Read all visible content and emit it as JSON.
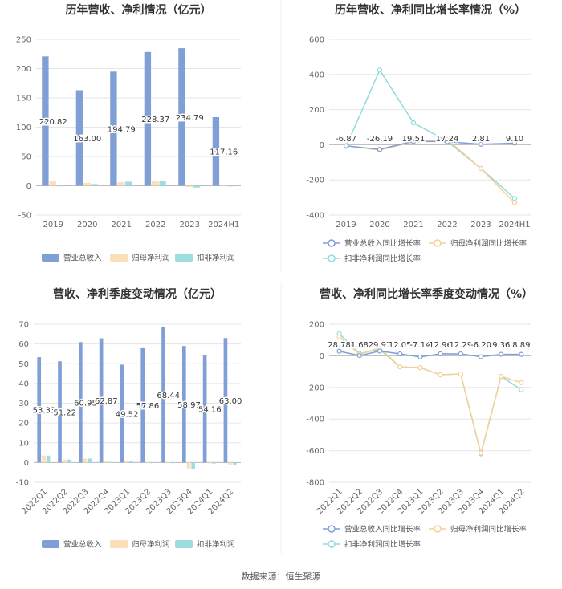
{
  "source_note": "数据来源：恒生聚源",
  "colors": {
    "revenue": "#7f9fd6",
    "net": "#fbdfb6",
    "deducted": "#9edee0",
    "grid": "#e6e6e6",
    "axis": "#bbbbbb"
  },
  "chart_data": [
    {
      "id": "annual-bar",
      "type": "bar",
      "title": "历年营收、净利情况（亿元）",
      "categories": [
        "2019",
        "2020",
        "2021",
        "2022",
        "2023",
        "2024H1"
      ],
      "series": [
        {
          "name": "营业总收入",
          "values": [
            220.82,
            163.0,
            194.79,
            228.37,
            234.79,
            117.16
          ]
        },
        {
          "name": "归母净利润",
          "values": [
            8,
            5,
            6,
            8,
            -2,
            -1
          ]
        },
        {
          "name": "扣非净利润",
          "values": [
            0,
            3,
            7,
            9,
            -3,
            -1
          ]
        }
      ],
      "value_labels": [
        "220.82",
        "163.00",
        "194.79",
        "228.37",
        "234.79",
        "117.16"
      ],
      "ylim": [
        -50,
        250
      ],
      "yticks": [
        -50,
        0,
        50,
        100,
        150,
        200,
        250
      ]
    },
    {
      "id": "annual-growth",
      "type": "line",
      "title": "历年营收、净利同比增长率情况（%）",
      "categories": [
        "2019",
        "2020",
        "2021",
        "2022",
        "2023",
        "2024H1"
      ],
      "series": [
        {
          "name": "营业总收入同比增长率",
          "values": [
            -6.87,
            -26.19,
            19.51,
            17.24,
            2.81,
            9.1
          ]
        },
        {
          "name": "归母净利润同比增长率",
          "values": [
            -5,
            -30,
            15,
            30,
            -135,
            -330
          ]
        },
        {
          "name": "扣非净利润同比增长率",
          "values": [
            -10,
            425,
            125,
            20,
            -135,
            -305
          ]
        }
      ],
      "value_labels": [
        "-6.87",
        "-26.19",
        "19.51",
        "17.24",
        "2.81",
        "9.10"
      ],
      "ylim": [
        -400,
        600
      ],
      "yticks": [
        -400,
        -200,
        0,
        200,
        400,
        600
      ]
    },
    {
      "id": "quarter-bar",
      "type": "bar",
      "title": "营收、净利季度变动情况（亿元）",
      "categories": [
        "2022Q1",
        "2022Q2",
        "2022Q3",
        "2022Q4",
        "2023Q1",
        "2023Q2",
        "2023Q3",
        "2023Q4",
        "2024Q1",
        "2024Q2"
      ],
      "series": [
        {
          "name": "营业总收入",
          "values": [
            53.33,
            51.22,
            60.95,
            62.87,
            49.52,
            57.86,
            68.44,
            58.97,
            54.16,
            63.0
          ]
        },
        {
          "name": "归母净利润",
          "values": [
            3.5,
            1.5,
            2,
            0.5,
            1,
            -0.3,
            -0.3,
            -3,
            -0.4,
            -1
          ]
        },
        {
          "name": "扣非净利润",
          "values": [
            3.5,
            1.5,
            2,
            0.3,
            0.8,
            -0.3,
            -0.3,
            -3.2,
            -0.5,
            -1
          ]
        }
      ],
      "value_labels": [
        "53.33",
        "51.22",
        "60.95",
        "62.87",
        "49.52",
        "57.86",
        "68.44",
        "58.97",
        "54.16",
        "63.00"
      ],
      "ylim": [
        -10,
        70
      ],
      "yticks": [
        -10,
        0,
        10,
        20,
        30,
        40,
        50,
        60,
        70
      ]
    },
    {
      "id": "quarter-growth",
      "type": "line",
      "title": "营收、净利同比增长率季度变动情况（%）",
      "categories": [
        "2022Q1",
        "2022Q2",
        "2022Q3",
        "2022Q4",
        "2023Q1",
        "2023Q2",
        "2023Q3",
        "2023Q4",
        "2024Q1",
        "2024Q2"
      ],
      "series": [
        {
          "name": "营业总收入同比增长率",
          "values": [
            28.78,
            1.68,
            29.97,
            12.05,
            -7.14,
            12.96,
            12.29,
            -6.2,
            9.36,
            8.89
          ]
        },
        {
          "name": "归母净利润同比增长率",
          "values": [
            120,
            10,
            50,
            -70,
            -75,
            -120,
            -115,
            -615,
            -130,
            -170
          ]
        },
        {
          "name": "扣非净利润同比增长率",
          "values": [
            140,
            15,
            40,
            -70,
            -75,
            -120,
            -115,
            -620,
            -130,
            -215
          ]
        }
      ],
      "value_labels": [
        "28.78",
        "1.68",
        "29.97",
        "12.05",
        "-7.14",
        "12.96",
        "12.29",
        "-6.20",
        "9.36",
        "8.89"
      ],
      "ylim": [
        -800,
        200
      ],
      "yticks": [
        -800,
        -600,
        -400,
        -200,
        0,
        200
      ]
    }
  ]
}
